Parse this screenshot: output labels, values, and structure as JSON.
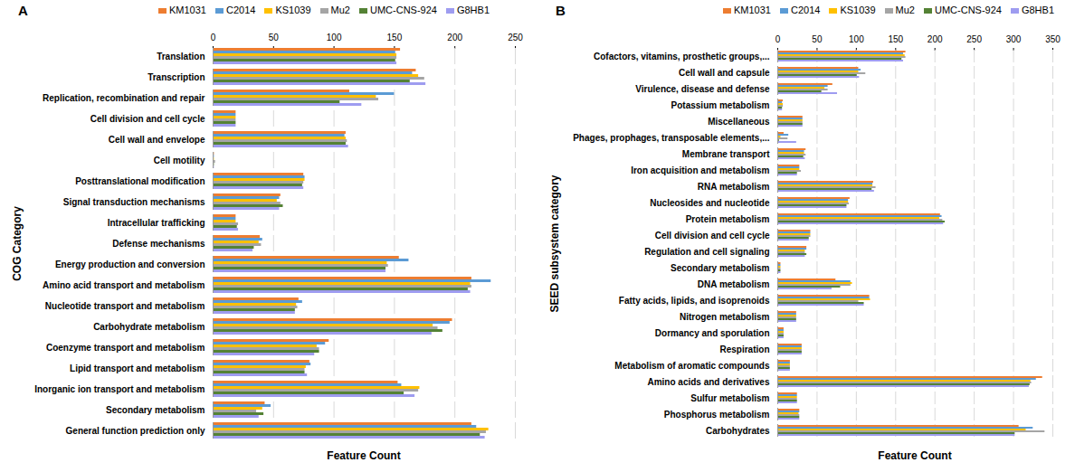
{
  "chart_data": [
    {
      "type": "bar",
      "title": "A",
      "orientation": "horizontal",
      "x_label": "Feature Count",
      "y_label": "COG Category",
      "xlim": [
        0,
        250
      ],
      "xticks": [
        0,
        50,
        100,
        150,
        200,
        250
      ],
      "grid": true,
      "legend": "top",
      "categories": [
        "Translation",
        "Transcription",
        "Replication, recombination and repair",
        "Cell division and cell cycle",
        "Cell wall and envelope",
        "Cell motility",
        "Posttranslational modification",
        "Signal transduction mechanisms",
        "Intracellular trafficking",
        "Defense mechanisms",
        "Energy production and conversion",
        "Amino acid transport and metabolism",
        "Nucleotide transport and metabolism",
        "Carbohydrate metabolism",
        "Coenzyme transport and metabolism",
        "Lipid transport and metabolism",
        "Inorganic ion transport and metabolism",
        "Secondary metabolism",
        "General function prediction only"
      ],
      "series": [
        {
          "name": "KM1031",
          "color": "#ED7D31",
          "values": [
            155,
            168,
            113,
            19,
            110,
            1,
            75,
            56,
            19,
            39,
            154,
            214,
            71,
            198,
            96,
            80,
            153,
            43,
            214
          ]
        },
        {
          "name": "C2014",
          "color": "#5B9BD5",
          "values": [
            151,
            165,
            150,
            19,
            109,
            1,
            76,
            55,
            19,
            41,
            162,
            230,
            74,
            196,
            93,
            81,
            156,
            48,
            218
          ]
        },
        {
          "name": "KS1039",
          "color": "#FFC000",
          "values": [
            152,
            170,
            135,
            19,
            110,
            1,
            76,
            53,
            19,
            38,
            144,
            213,
            69,
            182,
            86,
            77,
            171,
            41,
            228
          ]
        },
        {
          "name": "Mu2",
          "color": "#A5A5A5",
          "values": [
            152,
            175,
            137,
            19,
            111,
            2,
            75,
            56,
            21,
            40,
            145,
            214,
            70,
            186,
            88,
            76,
            170,
            36,
            226
          ]
        },
        {
          "name": "UMC-CNS-924",
          "color": "#548235",
          "values": [
            151,
            163,
            105,
            19,
            110,
            1,
            74,
            58,
            20,
            34,
            143,
            211,
            68,
            190,
            88,
            76,
            158,
            42,
            221
          ]
        },
        {
          "name": "G8HB1",
          "color": "#9E9CF0",
          "values": [
            152,
            176,
            123,
            19,
            112,
            1,
            75,
            55,
            21,
            33,
            143,
            213,
            68,
            181,
            84,
            78,
            167,
            38,
            225
          ]
        }
      ]
    },
    {
      "type": "bar",
      "title": "B",
      "orientation": "horizontal",
      "x_label": "Feature Count",
      "y_label": "SEED subsystem category",
      "xlim": [
        0,
        350
      ],
      "xticks": [
        0,
        50,
        100,
        150,
        200,
        250,
        300,
        350
      ],
      "grid": true,
      "legend": "top",
      "categories": [
        "Cofactors, vitamins, prosthetic groups,...",
        "Cell wall and capsule",
        "Virulence, disease and defense",
        "Potassium metabolism",
        "Miscellaneous",
        "Phages, prophages, transposable elements,...",
        "Membrane transport",
        "Iron acquisition and metabolism",
        "RNA metabolism",
        "Nucleosides and nucleotide",
        "Protein metabolism",
        "Cell division and cell cycle",
        "Regulation and cell signaling",
        "Secondary metabolism",
        "DNA metabolism",
        "Fatty acids, lipids, and isoprenoids",
        "Nitrogen metabolism",
        "Dormancy and sporulation",
        "Respiration",
        "Metabolism of aromatic compounds",
        "Amino acids and derivatives",
        "Sulfur metabolism",
        "Phosphorus metabolism",
        "Carbohydrates"
      ],
      "series": [
        {
          "name": "KM1031",
          "color": "#ED7D31",
          "values": [
            163,
            103,
            70,
            7,
            32,
            8,
            36,
            28,
            122,
            92,
            207,
            42,
            37,
            4,
            74,
            117,
            24,
            8,
            31,
            16,
            337,
            25,
            28,
            307
          ]
        },
        {
          "name": "C2014",
          "color": "#5B9BD5",
          "values": [
            160,
            106,
            64,
            6,
            32,
            14,
            34,
            28,
            121,
            90,
            209,
            42,
            37,
            4,
            93,
            117,
            24,
            8,
            31,
            16,
            329,
            25,
            28,
            325
          ]
        },
        {
          "name": "KS1039",
          "color": "#FFC000",
          "values": [
            162,
            103,
            60,
            7,
            32,
            4,
            34,
            28,
            121,
            90,
            206,
            42,
            35,
            4,
            95,
            118,
            24,
            8,
            31,
            16,
            322,
            25,
            27,
            316
          ]
        },
        {
          "name": "Mu2",
          "color": "#A5A5A5",
          "values": [
            163,
            112,
            64,
            7,
            32,
            13,
            36,
            30,
            125,
            91,
            210,
            42,
            35,
            4,
            93,
            103,
            24,
            8,
            31,
            16,
            323,
            25,
            28,
            340
          ]
        },
        {
          "name": "UMC-CNS-924",
          "color": "#548235",
          "values": [
            158,
            101,
            56,
            6,
            32,
            2,
            33,
            25,
            120,
            88,
            213,
            40,
            37,
            4,
            80,
            110,
            24,
            8,
            31,
            16,
            321,
            25,
            28,
            302
          ]
        },
        {
          "name": "G8HB1",
          "color": "#9E9CF0",
          "values": [
            160,
            104,
            76,
            6,
            32,
            24,
            35,
            25,
            123,
            88,
            211,
            40,
            35,
            4,
            69,
            110,
            24,
            8,
            31,
            16,
            320,
            25,
            28,
            302
          ]
        }
      ]
    }
  ]
}
